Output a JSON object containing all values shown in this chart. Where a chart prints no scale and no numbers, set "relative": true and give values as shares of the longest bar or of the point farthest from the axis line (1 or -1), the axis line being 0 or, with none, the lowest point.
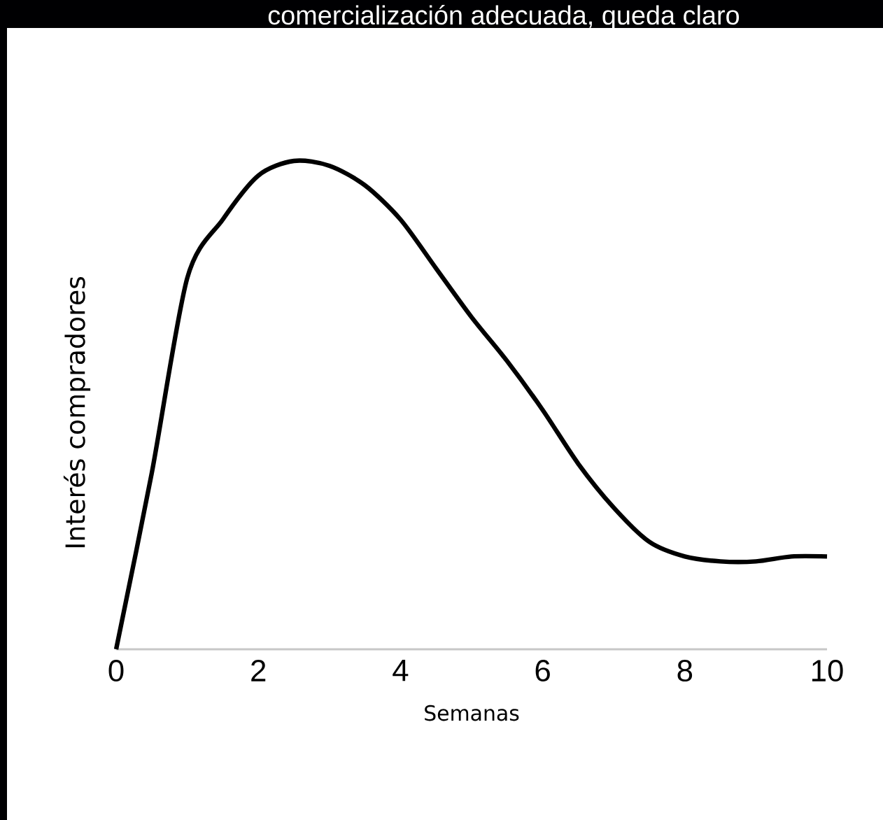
{
  "chart_data": {
    "type": "line",
    "xlabel": "Semanas",
    "ylabel": "Interés compradores",
    "annotations": [
      "comercialización adecuada, queda claro"
    ],
    "x": [
      0,
      0.5,
      1,
      1.5,
      2,
      2.5,
      3,
      3.5,
      4,
      4.5,
      5,
      5.5,
      6,
      6.5,
      7,
      7.5,
      8,
      8.5,
      9,
      9.5,
      10
    ],
    "values": [
      0,
      0.36,
      0.76,
      0.88,
      0.97,
      1,
      0.99,
      0.95,
      0.88,
      0.78,
      0.68,
      0.59,
      0.49,
      0.38,
      0.29,
      0.22,
      0.19,
      0.18,
      0.18,
      0.19,
      0.19
    ],
    "color": "#000000",
    "relative": true,
    "marker": "none",
    "line_style": "solid",
    "xlim": [
      0,
      10
    ],
    "xticks": [
      0,
      2,
      4,
      6,
      8,
      10
    ]
  }
}
